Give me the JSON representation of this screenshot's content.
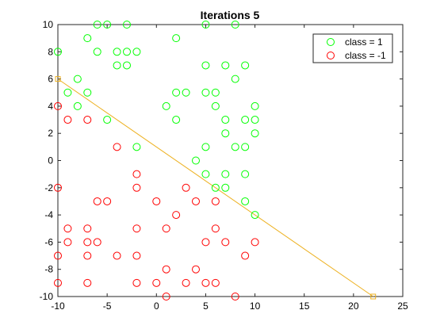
{
  "chart_data": {
    "type": "scatter",
    "title": "Iterations 5",
    "xlabel": "",
    "ylabel": "",
    "xlim": [
      -10,
      25
    ],
    "ylim": [
      -10,
      10
    ],
    "xticks": [
      -10,
      -5,
      0,
      5,
      10,
      15,
      20,
      25
    ],
    "yticks": [
      -10,
      -8,
      -6,
      -4,
      -2,
      0,
      2,
      4,
      6,
      8,
      10
    ],
    "grid": false,
    "legend_position": "top-right",
    "series": [
      {
        "name": "class = 1",
        "color": "#00ff00",
        "marker": "circle",
        "points": [
          [
            -6,
            10
          ],
          [
            -5,
            10
          ],
          [
            -3,
            10
          ],
          [
            5,
            10
          ],
          [
            8,
            10
          ],
          [
            -7,
            9
          ],
          [
            2,
            9
          ],
          [
            -10,
            8
          ],
          [
            -6,
            8
          ],
          [
            -4,
            8
          ],
          [
            -3,
            8
          ],
          [
            -2,
            8
          ],
          [
            -4,
            7
          ],
          [
            -3,
            7
          ],
          [
            5,
            7
          ],
          [
            7,
            7
          ],
          [
            9,
            7
          ],
          [
            -8,
            6
          ],
          [
            8,
            6
          ],
          [
            -9,
            5
          ],
          [
            -7,
            5
          ],
          [
            2,
            5
          ],
          [
            3,
            5
          ],
          [
            5,
            5
          ],
          [
            6,
            5
          ],
          [
            -8,
            4
          ],
          [
            1,
            4
          ],
          [
            6,
            4
          ],
          [
            10,
            4
          ],
          [
            -5,
            3
          ],
          [
            2,
            3
          ],
          [
            7,
            3
          ],
          [
            9,
            3
          ],
          [
            10,
            3
          ],
          [
            7,
            2
          ],
          [
            10,
            2
          ],
          [
            -2,
            1
          ],
          [
            5,
            1
          ],
          [
            8,
            1
          ],
          [
            9,
            1
          ],
          [
            4,
            0
          ],
          [
            5,
            -1
          ],
          [
            7,
            -1
          ],
          [
            9,
            -1
          ],
          [
            6,
            -2
          ],
          [
            7,
            -2
          ],
          [
            9,
            -3
          ],
          [
            10,
            -4
          ]
        ]
      },
      {
        "name": "class = -1",
        "color": "#ff0000",
        "marker": "circle",
        "points": [
          [
            -10,
            4
          ],
          [
            -9,
            3
          ],
          [
            -7,
            3
          ],
          [
            -4,
            1
          ],
          [
            -2,
            -1
          ],
          [
            -10,
            -2
          ],
          [
            -2,
            -2
          ],
          [
            3,
            -2
          ],
          [
            -6,
            -3
          ],
          [
            -5,
            -3
          ],
          [
            0,
            -3
          ],
          [
            4,
            -3
          ],
          [
            6,
            -3
          ],
          [
            2,
            -4
          ],
          [
            -9,
            -5
          ],
          [
            -7,
            -5
          ],
          [
            -2,
            -5
          ],
          [
            1,
            -5
          ],
          [
            6,
            -5
          ],
          [
            -9,
            -6
          ],
          [
            -7,
            -6
          ],
          [
            -6,
            -6
          ],
          [
            5,
            -6
          ],
          [
            7,
            -6
          ],
          [
            10,
            -6
          ],
          [
            -10,
            -7
          ],
          [
            -7,
            -7
          ],
          [
            -4,
            -7
          ],
          [
            -2,
            -7
          ],
          [
            9,
            -7
          ],
          [
            1,
            -8
          ],
          [
            4,
            -8
          ],
          [
            -10,
            -9
          ],
          [
            -7,
            -9
          ],
          [
            -2,
            -9
          ],
          [
            0,
            -9
          ],
          [
            3,
            -9
          ],
          [
            5,
            -9
          ],
          [
            6,
            -9
          ],
          [
            1,
            -10
          ],
          [
            8,
            -10
          ]
        ]
      }
    ],
    "decision_line": {
      "color": "#edb120",
      "points": [
        [
          -10,
          6
        ],
        [
          22,
          -10
        ]
      ]
    }
  }
}
